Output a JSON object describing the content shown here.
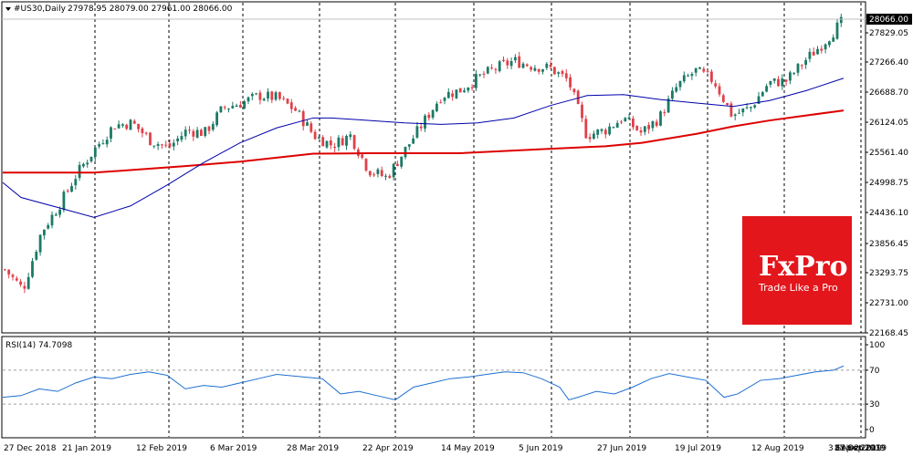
{
  "header": {
    "symbol": "#US30,Daily",
    "ohlc": "27978.95 28079.00 27961.00 28066.00"
  },
  "rsi_header": "RSI(14) 74.7098",
  "brand": {
    "name": "FxPro",
    "tagline": "Trade Like a Pro",
    "color": "#e3161b"
  },
  "colors": {
    "ma_fast": "#0000aa",
    "ma_slow": "#dd0000",
    "up": "#1b7a66",
    "down": "#e0404a",
    "rsi": "#1e6fd0"
  },
  "chart_data": [
    {
      "type": "candlestick",
      "symbol": "#US30",
      "timeframe": "Daily",
      "last_price": 28066.0,
      "ylim": [
        21880,
        28450
      ],
      "y_ticks": [
        "27829.05",
        "27266.40",
        "26688.70",
        "26124.05",
        "25561.40",
        "24998.75",
        "24436.10",
        "23856.45",
        "23293.75",
        "22731.00",
        "22168.45"
      ],
      "x_ticks": [
        "27 Dec 2018",
        "21 Jan 2019",
        "12 Feb 2019",
        "6 Mar 2019",
        "28 Mar 2019",
        "22 Apr 2019",
        "14 May 2019",
        "5 Jun 2019",
        "27 Jun 2019",
        "19 Jul 2019",
        "12 Aug 2019",
        "3 Sep 2019",
        "25 Sep 2019",
        "17 Oct 2019",
        "8 Nov 2019"
      ],
      "close_path": [
        [
          "27 Dec 2018",
          23100
        ],
        [
          "2 Jan 2019",
          22700
        ],
        [
          "10 Jan 2019",
          23850
        ],
        [
          "21 Jan 2019",
          24400
        ],
        [
          "1 Feb 2019",
          25050
        ],
        [
          "12 Feb 2019",
          25550
        ],
        [
          "18 Feb 2019",
          26000
        ],
        [
          "26 Feb 2019",
          26050
        ],
        [
          "6 Mar 2019",
          25700
        ],
        [
          "12 Mar 2019",
          25550
        ],
        [
          "21 Mar 2019",
          25900
        ],
        [
          "28 Mar 2019",
          25850
        ],
        [
          "5 Apr 2019",
          26350
        ],
        [
          "15 Apr 2019",
          26450
        ],
        [
          "22 Apr 2019",
          26600
        ],
        [
          "26 Apr 2019",
          26550
        ],
        [
          "3 May 2019",
          26300
        ],
        [
          "10 May 2019",
          25800
        ],
        [
          "14 May 2019",
          25600
        ],
        [
          "21 May 2019",
          25800
        ],
        [
          "29 May 2019",
          25100
        ],
        [
          "3 Jun 2019",
          24950
        ],
        [
          "5 Jun 2019",
          25500
        ],
        [
          "12 Jun 2019",
          26050
        ],
        [
          "20 Jun 2019",
          26600
        ],
        [
          "27 Jun 2019",
          26700
        ],
        [
          "3 Jul 2019",
          26950
        ],
        [
          "10 Jul 2019",
          27150
        ],
        [
          "16 Jul 2019",
          27300
        ],
        [
          "19 Jul 2019",
          27200
        ],
        [
          "25 Jul 2019",
          27150
        ],
        [
          "31 Jul 2019",
          26900
        ],
        [
          "5 Aug 2019",
          25800
        ],
        [
          "12 Aug 2019",
          25900
        ],
        [
          "20 Aug 2019",
          26150
        ],
        [
          "26 Aug 2019",
          25850
        ],
        [
          "3 Sep 2019",
          26150
        ],
        [
          "10 Sep 2019",
          26800
        ],
        [
          "17 Sep 2019",
          27100
        ],
        [
          "25 Sep 2019",
          26900
        ],
        [
          "1 Oct 2019",
          26200
        ],
        [
          "8 Oct 2019",
          26350
        ],
        [
          "17 Oct 2019",
          26850
        ],
        [
          "24 Oct 2019",
          26900
        ],
        [
          "1 Nov 2019",
          27300
        ],
        [
          "8 Nov 2019",
          27650
        ],
        [
          "15 Nov 2019",
          28066
        ]
      ],
      "series": [
        {
          "name": "MA fast",
          "values": [
            [
              0,
              24850
            ],
            [
              20,
              24550
            ],
            [
              60,
              24350
            ],
            [
              100,
              24150
            ],
            [
              140,
              24380
            ],
            [
              180,
              24800
            ],
            [
              220,
              25250
            ],
            [
              260,
              25650
            ],
            [
              300,
              25950
            ],
            [
              340,
              26150
            ],
            [
              360,
              26150
            ],
            [
              400,
              26100
            ],
            [
              440,
              26050
            ],
            [
              480,
              26020
            ],
            [
              520,
              26050
            ],
            [
              560,
              26150
            ],
            [
              600,
              26400
            ],
            [
              640,
              26600
            ],
            [
              680,
              26620
            ],
            [
              720,
              26520
            ],
            [
              760,
              26450
            ],
            [
              800,
              26380
            ],
            [
              840,
              26500
            ],
            [
              880,
              26700
            ],
            [
              921,
              26950
            ]
          ]
        },
        {
          "name": "MA slow",
          "values": [
            [
              0,
              25050
            ],
            [
              100,
              25050
            ],
            [
              200,
              25180
            ],
            [
              260,
              25270
            ],
            [
              340,
              25430
            ],
            [
              400,
              25440
            ],
            [
              500,
              25440
            ],
            [
              600,
              25530
            ],
            [
              660,
              25580
            ],
            [
              700,
              25650
            ],
            [
              760,
              25830
            ],
            [
              800,
              25980
            ],
            [
              840,
              26100
            ],
            [
              880,
              26200
            ],
            [
              921,
              26300
            ]
          ]
        }
      ]
    },
    {
      "type": "line",
      "name": "RSI(14)",
      "ylim": [
        0,
        100
      ],
      "y_ticks": [
        "100",
        "70",
        "30",
        "0"
      ],
      "levels": [
        70,
        30
      ],
      "points": [
        [
          0,
          38
        ],
        [
          20,
          40
        ],
        [
          40,
          48
        ],
        [
          60,
          45
        ],
        [
          80,
          55
        ],
        [
          100,
          62
        ],
        [
          120,
          60
        ],
        [
          140,
          65
        ],
        [
          160,
          68
        ],
        [
          180,
          64
        ],
        [
          200,
          48
        ],
        [
          220,
          52
        ],
        [
          240,
          50
        ],
        [
          260,
          55
        ],
        [
          280,
          60
        ],
        [
          300,
          65
        ],
        [
          330,
          62
        ],
        [
          350,
          60
        ],
        [
          370,
          42
        ],
        [
          390,
          45
        ],
        [
          410,
          40
        ],
        [
          430,
          35
        ],
        [
          450,
          50
        ],
        [
          470,
          55
        ],
        [
          490,
          60
        ],
        [
          510,
          62
        ],
        [
          530,
          65
        ],
        [
          550,
          68
        ],
        [
          570,
          67
        ],
        [
          590,
          60
        ],
        [
          610,
          50
        ],
        [
          620,
          35
        ],
        [
          630,
          38
        ],
        [
          650,
          45
        ],
        [
          670,
          42
        ],
        [
          690,
          50
        ],
        [
          710,
          60
        ],
        [
          730,
          66
        ],
        [
          750,
          62
        ],
        [
          770,
          58
        ],
        [
          790,
          38
        ],
        [
          805,
          42
        ],
        [
          830,
          58
        ],
        [
          850,
          60
        ],
        [
          870,
          64
        ],
        [
          890,
          68
        ],
        [
          910,
          70
        ],
        [
          921,
          75
        ]
      ],
      "last_value": 74.7098
    }
  ]
}
